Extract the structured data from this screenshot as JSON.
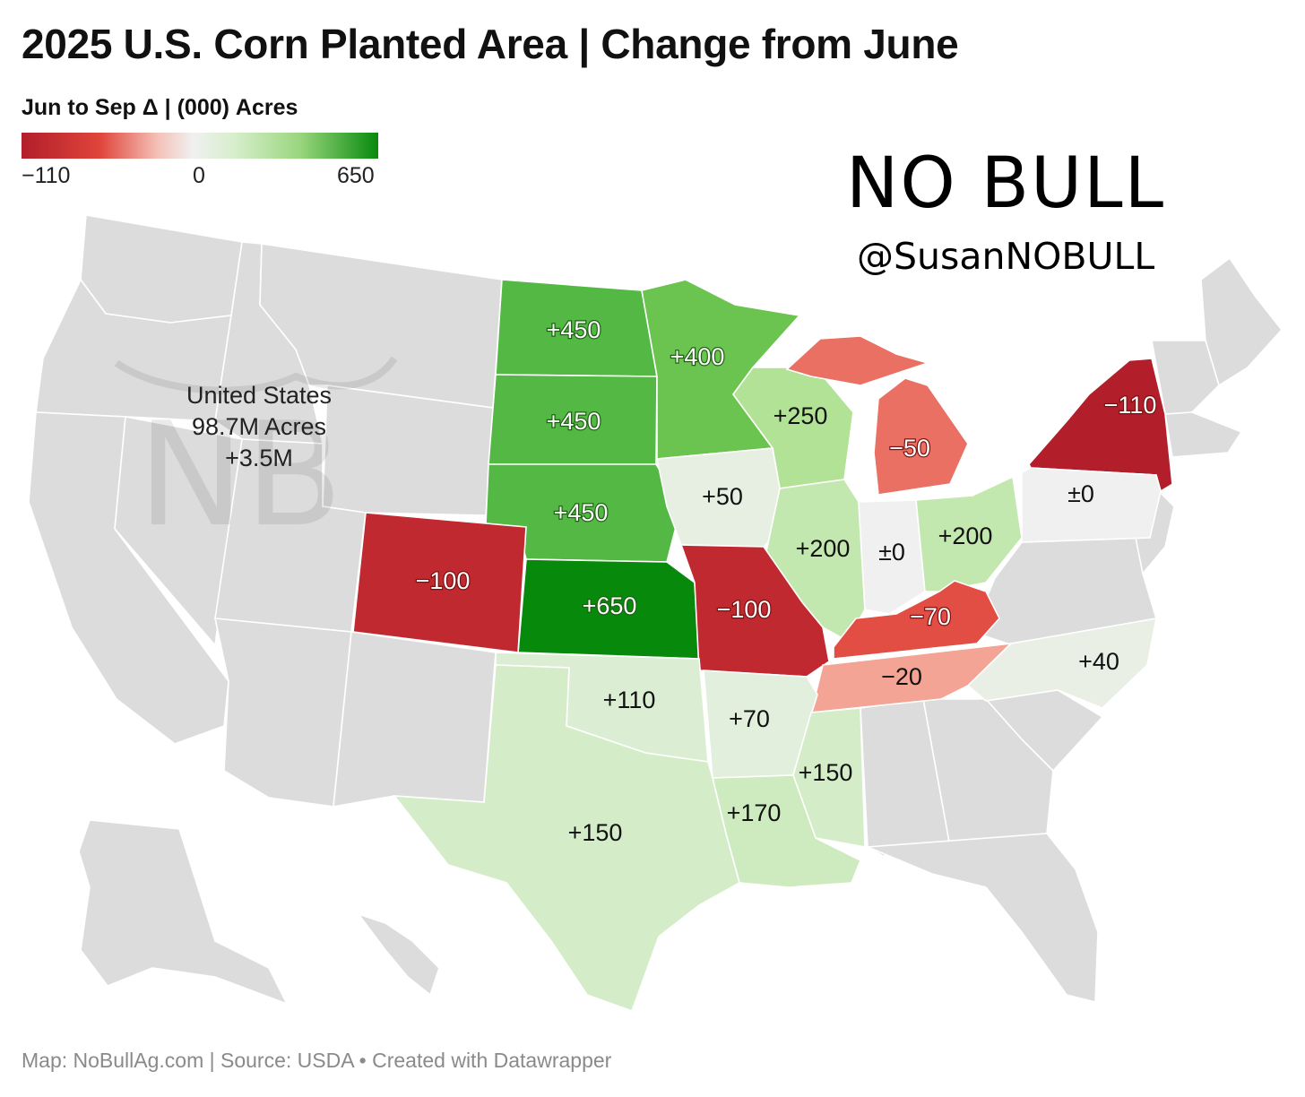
{
  "header": {
    "title": "2025 U.S. Corn Planted Area | Change from June"
  },
  "legend": {
    "title": "Jun to Sep Δ | (000) Acres",
    "min_label": "−110",
    "mid_label": "0",
    "max_label": "650",
    "colors": [
      "#b21e2a",
      "#e0453b",
      "#f4c0b6",
      "#f0f0f0",
      "#d6eecb",
      "#9ad67e",
      "#078a0c"
    ]
  },
  "logo": {
    "wordmark": "NO BULL",
    "handle": "@SusanNOBULL"
  },
  "annotation": {
    "line1": "United States",
    "line2": "98.7M Acres",
    "line3": "+3.5M"
  },
  "chart_data": {
    "type": "choropleth",
    "colors": {
      "no_data": "#dcdcdc"
    },
    "states": [
      {
        "state": "ND",
        "label": "+450",
        "value": 450
      },
      {
        "state": "SD",
        "label": "+450",
        "value": 450
      },
      {
        "state": "NE",
        "label": "+450",
        "value": 450
      },
      {
        "state": "KS",
        "label": "+650",
        "value": 650
      },
      {
        "state": "MN",
        "label": "+400",
        "value": 400
      },
      {
        "state": "WI",
        "label": "+250",
        "value": 250
      },
      {
        "state": "IA",
        "label": "+50",
        "value": 50
      },
      {
        "state": "IL",
        "label": "+200",
        "value": 200
      },
      {
        "state": "IN",
        "label": "±0",
        "value": 0
      },
      {
        "state": "OH",
        "label": "+200",
        "value": 200
      },
      {
        "state": "MI",
        "label": "−50",
        "value": -50
      },
      {
        "state": "NY",
        "label": "−110",
        "value": -110
      },
      {
        "state": "PA",
        "label": "±0",
        "value": 0
      },
      {
        "state": "CO",
        "label": "−100",
        "value": -100
      },
      {
        "state": "MO",
        "label": "−100",
        "value": -100
      },
      {
        "state": "KY",
        "label": "−70",
        "value": -70
      },
      {
        "state": "TN",
        "label": "−20",
        "value": -20
      },
      {
        "state": "NC",
        "label": "+40",
        "value": 40
      },
      {
        "state": "OK",
        "label": "+110",
        "value": 110
      },
      {
        "state": "AR",
        "label": "+70",
        "value": 70
      },
      {
        "state": "MS",
        "label": "+150",
        "value": 150
      },
      {
        "state": "LA",
        "label": "+170",
        "value": 170
      },
      {
        "state": "TX",
        "label": "+150",
        "value": 150
      }
    ]
  },
  "footer": {
    "source": "Map: NoBullAg.com | Source: USDA • Created with Datawrapper"
  }
}
